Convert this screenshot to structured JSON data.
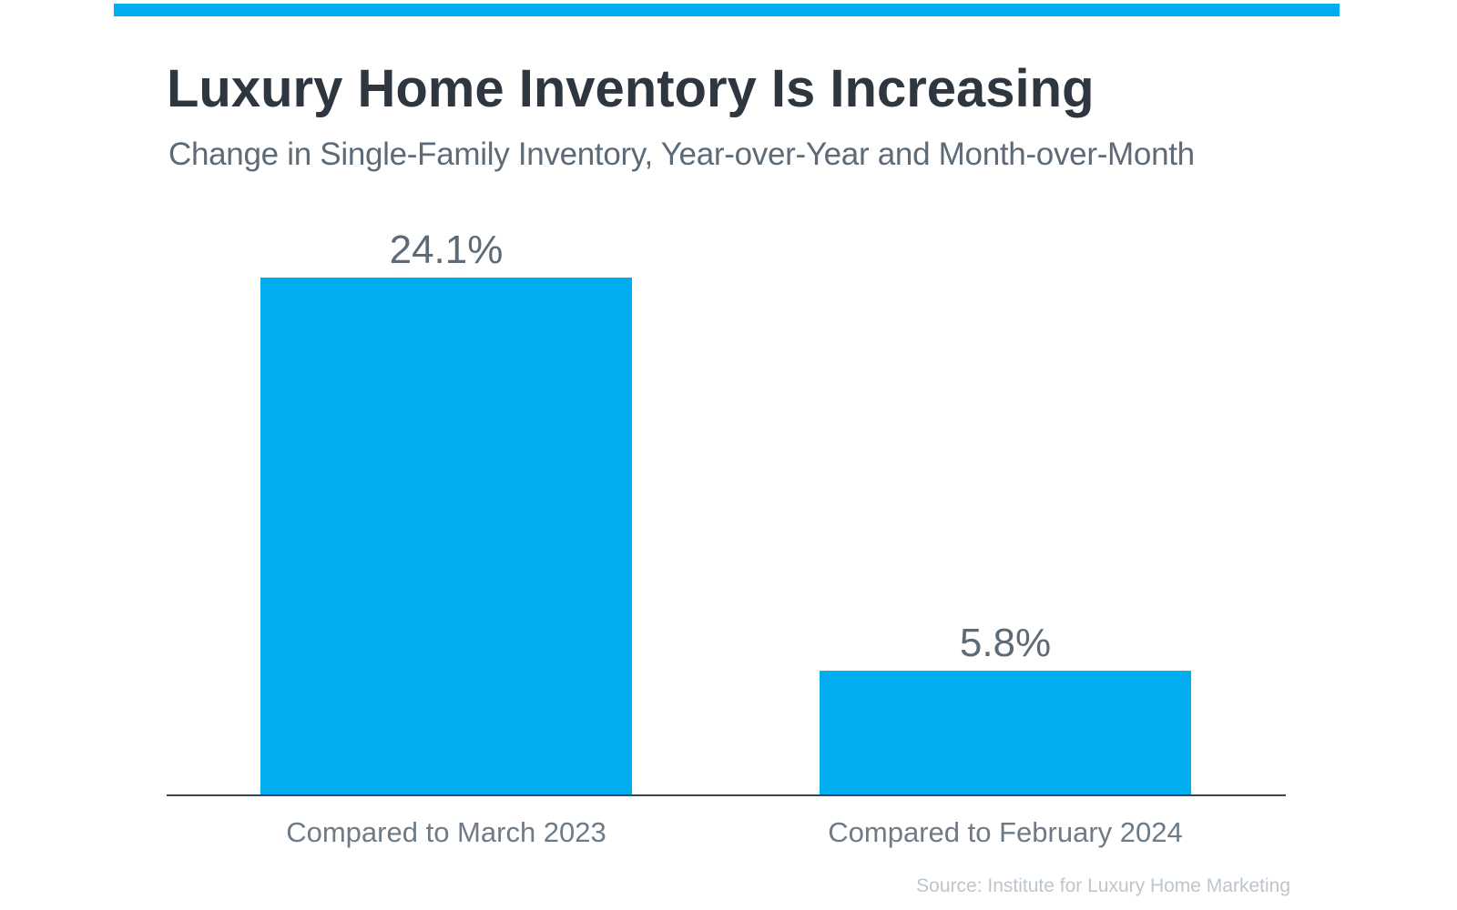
{
  "chart_data": {
    "type": "bar",
    "title": "Luxury Home Inventory Is Increasing",
    "subtitle": "Change in Single-Family Inventory, Year-over-Year and Month-over-Month",
    "categories": [
      "Compared to March 2023",
      "Compared to February 2024"
    ],
    "values": [
      24.1,
      5.8
    ],
    "value_labels": [
      "24.1%",
      "5.8%"
    ],
    "ylim": [
      0,
      24.1
    ],
    "grid": false,
    "legend": "none",
    "bar_color": "#00adee",
    "source": "Source: Institute  for Luxury  Home Marketing"
  },
  "colors": {
    "accent": "#00adee",
    "title": "#2e3740",
    "text": "#5d6b78",
    "axis": "#3c4650",
    "source": "#bcc6cf"
  }
}
